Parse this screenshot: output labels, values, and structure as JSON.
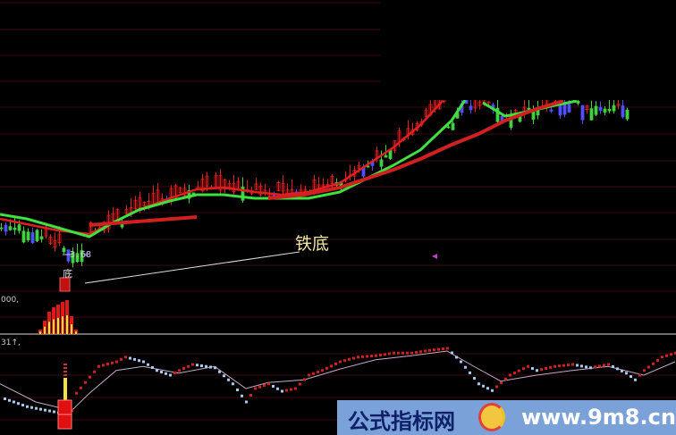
{
  "chart_data": {
    "type": "candlestick",
    "title": "",
    "annotations": {
      "label": "铁底",
      "low_marker": "底",
      "low_price": "3.68"
    },
    "volume_panel_label": "000,",
    "indicator_panel_label": "31↑,",
    "grid": true,
    "colors": {
      "up": "#e02020",
      "down": "#40d040",
      "neutral": "#5050ff",
      "ma_short": "#e02020",
      "ma_mid": "#40e040",
      "ma_long": "#d02020",
      "kdj_up": "#d02020",
      "kdj_down": "#a8c8f0",
      "kdj_d": "#c8a8c8"
    },
    "series": [
      {
        "role": "ma_short",
        "x": [
          0,
          13,
          20,
          25,
          31,
          38,
          44,
          50,
          57,
          63,
          69,
          76,
          82,
          88,
          94,
          99
        ],
        "values": [
          4.05,
          3.92,
          3.88,
          4.0,
          4.15,
          4.28,
          4.38,
          4.4,
          4.35,
          4.32,
          4.35,
          4.45,
          4.65,
          4.85,
          5.1,
          5.37
        ]
      },
      {
        "role": "ma_mid",
        "x": [
          0,
          6,
          13,
          20,
          25,
          31,
          38,
          44,
          50,
          57,
          63,
          69,
          76,
          82,
          88,
          94,
          101,
          104
        ],
        "values": [
          4.1,
          4.05,
          3.95,
          3.85,
          4.0,
          4.15,
          4.25,
          4.32,
          4.32,
          4.28,
          4.28,
          4.28,
          4.35,
          4.5,
          4.65,
          4.82,
          5.15,
          5.38
        ]
      },
      {
        "role": "ma_mid_b",
        "x": [
          108,
          113,
          118,
          124,
          129
        ],
        "values": [
          5.35,
          5.2,
          5.25,
          5.32,
          5.37
        ]
      },
      {
        "role": "ma_long_a",
        "x": [
          20,
          44
        ],
        "values": [
          3.98,
          4.07
        ]
      },
      {
        "role": "ma_long",
        "x": [
          60,
          68,
          76,
          82,
          88,
          94,
          101,
          107,
          113,
          120,
          126
        ],
        "values": [
          4.28,
          4.32,
          4.4,
          4.5,
          4.6,
          4.72,
          4.88,
          5.0,
          5.15,
          5.28,
          5.37
        ]
      }
    ],
    "volume": {
      "x": [
        9,
        10,
        11,
        12,
        13,
        14,
        15,
        16,
        17
      ],
      "values": [
        5,
        15,
        25,
        30,
        33,
        36,
        38,
        20,
        5
      ]
    },
    "kdj": {
      "k": {
        "x": [
          0,
          6,
          13,
          16,
          17,
          22,
          26,
          28,
          32,
          35,
          38,
          40,
          43,
          48,
          52,
          55,
          57,
          60,
          63,
          66,
          69,
          72,
          76,
          80,
          84,
          88,
          92,
          96,
          100,
          103,
          107,
          110,
          114,
          118,
          120,
          124,
          128,
          132,
          136,
          140,
          142,
          144,
          148,
          151
        ],
        "values": [
          27,
          13,
          4,
          7,
          33,
          73,
          80,
          87,
          80,
          67,
          60,
          67,
          76,
          71,
          47,
          20,
          40,
          47,
          36,
          40,
          60,
          67,
          80,
          87,
          89,
          93,
          93,
          97,
          100,
          80,
          47,
          37,
          60,
          73,
          67,
          73,
          76,
          71,
          76,
          63,
          53,
          67,
          87,
          93
        ]
      },
      "d": {
        "x": [
          0,
          8,
          16,
          20,
          26,
          32,
          40,
          48,
          55,
          60,
          68,
          76,
          84,
          92,
          100,
          106,
          112,
          120,
          128,
          136,
          144,
          151
        ],
        "values": [
          47,
          20,
          7,
          33,
          67,
          73,
          63,
          73,
          40,
          49,
          53,
          69,
          83,
          89,
          96,
          73,
          51,
          60,
          67,
          73,
          60,
          80
        ]
      }
    }
  },
  "watermark": {
    "site_name": "公式指标网",
    "url": "www.9m8.cn"
  }
}
